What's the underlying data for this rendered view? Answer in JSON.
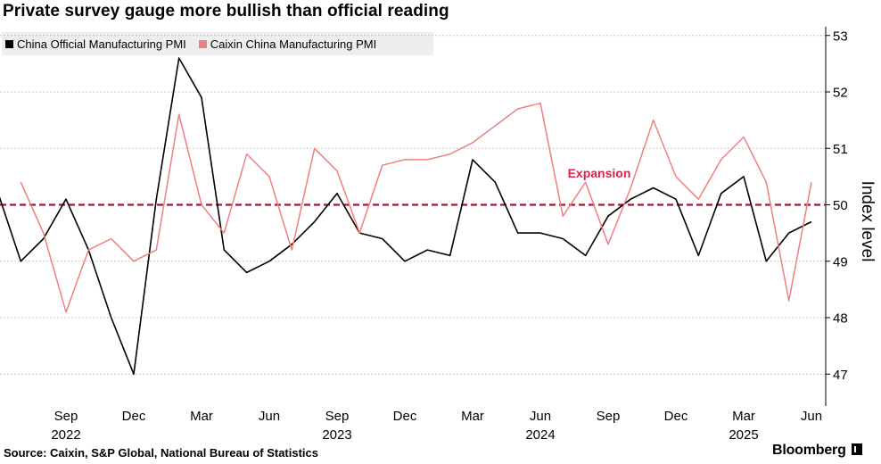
{
  "title": "Private survey gauge more bullish than official reading",
  "legend": [
    {
      "label": "China Official Manufacturing PMI",
      "color": "#000000"
    },
    {
      "label": "Caixin China Manufacturing PMI",
      "color": "#f07f7f"
    }
  ],
  "source": "Source: Caixin, S&P Global, National Bureau of Statistics",
  "brand": "Bloomberg",
  "chart_data": {
    "type": "line",
    "title": "Private survey gauge more bullish than official reading",
    "ylabel": "Index level",
    "ylim": [
      46.5,
      53.2
    ],
    "yticks": [
      "47",
      "48",
      "49",
      "50",
      "51",
      "52",
      "53"
    ],
    "x": [
      "Jun 2022",
      "Jul 2022",
      "Aug 2022",
      "Sep 2022",
      "Oct 2022",
      "Nov 2022",
      "Dec 2022",
      "Jan 2023",
      "Feb 2023",
      "Mar 2023",
      "Apr 2023",
      "May 2023",
      "Jun 2023",
      "Jul 2023",
      "Aug 2023",
      "Sep 2023",
      "Oct 2023",
      "Nov 2023",
      "Dec 2023",
      "Jan 2024",
      "Feb 2024",
      "Mar 2024",
      "Apr 2024",
      "May 2024",
      "Jun 2024",
      "Jul 2024",
      "Aug 2024",
      "Sep 2024",
      "Oct 2024",
      "Nov 2024",
      "Dec 2024",
      "Jan 2025",
      "Feb 2025",
      "Mar 2025",
      "Apr 2025",
      "May 2025",
      "Jun 2025"
    ],
    "x_ticks": [
      {
        "index": 3,
        "month": "Sep",
        "year": "2022"
      },
      {
        "index": 6,
        "month": "Dec",
        "year": ""
      },
      {
        "index": 9,
        "month": "Mar",
        "year": ""
      },
      {
        "index": 12,
        "month": "Jun",
        "year": ""
      },
      {
        "index": 15,
        "month": "Sep",
        "year": "2023"
      },
      {
        "index": 18,
        "month": "Dec",
        "year": ""
      },
      {
        "index": 21,
        "month": "Mar",
        "year": ""
      },
      {
        "index": 24,
        "month": "Jun",
        "year": "2024"
      },
      {
        "index": 27,
        "month": "Sep",
        "year": ""
      },
      {
        "index": 30,
        "month": "Dec",
        "year": ""
      },
      {
        "index": 33,
        "month": "Mar",
        "year": "2025"
      },
      {
        "index": 36,
        "month": "Jun",
        "year": ""
      }
    ],
    "series": [
      {
        "name": "China Official Manufacturing PMI",
        "color": "#000000",
        "values": [
          50.2,
          49.0,
          49.4,
          50.1,
          49.2,
          48.0,
          47.0,
          50.1,
          52.6,
          51.9,
          49.2,
          48.8,
          49.0,
          49.3,
          49.7,
          50.2,
          49.5,
          49.4,
          49.0,
          49.2,
          49.1,
          50.8,
          50.4,
          49.5,
          49.5,
          49.4,
          49.1,
          49.8,
          50.1,
          50.3,
          50.1,
          49.1,
          50.2,
          50.5,
          49.0,
          49.5,
          49.7
        ]
      },
      {
        "name": "Caixin China Manufacturing PMI",
        "color": "#f07f7f",
        "values": [
          null,
          50.4,
          49.5,
          48.1,
          49.2,
          49.4,
          49.0,
          49.2,
          51.6,
          50.0,
          49.5,
          50.9,
          50.5,
          49.2,
          51.0,
          50.6,
          49.5,
          50.7,
          50.8,
          50.8,
          50.9,
          51.1,
          51.4,
          51.7,
          51.8,
          49.8,
          50.4,
          49.3,
          50.3,
          51.5,
          50.5,
          50.1,
          50.8,
          51.2,
          50.4,
          48.3,
          50.4
        ]
      }
    ],
    "reference_line": {
      "value": 50,
      "label": "Expansion",
      "color": "#9e1b32",
      "label_color": "#d4264f"
    }
  }
}
